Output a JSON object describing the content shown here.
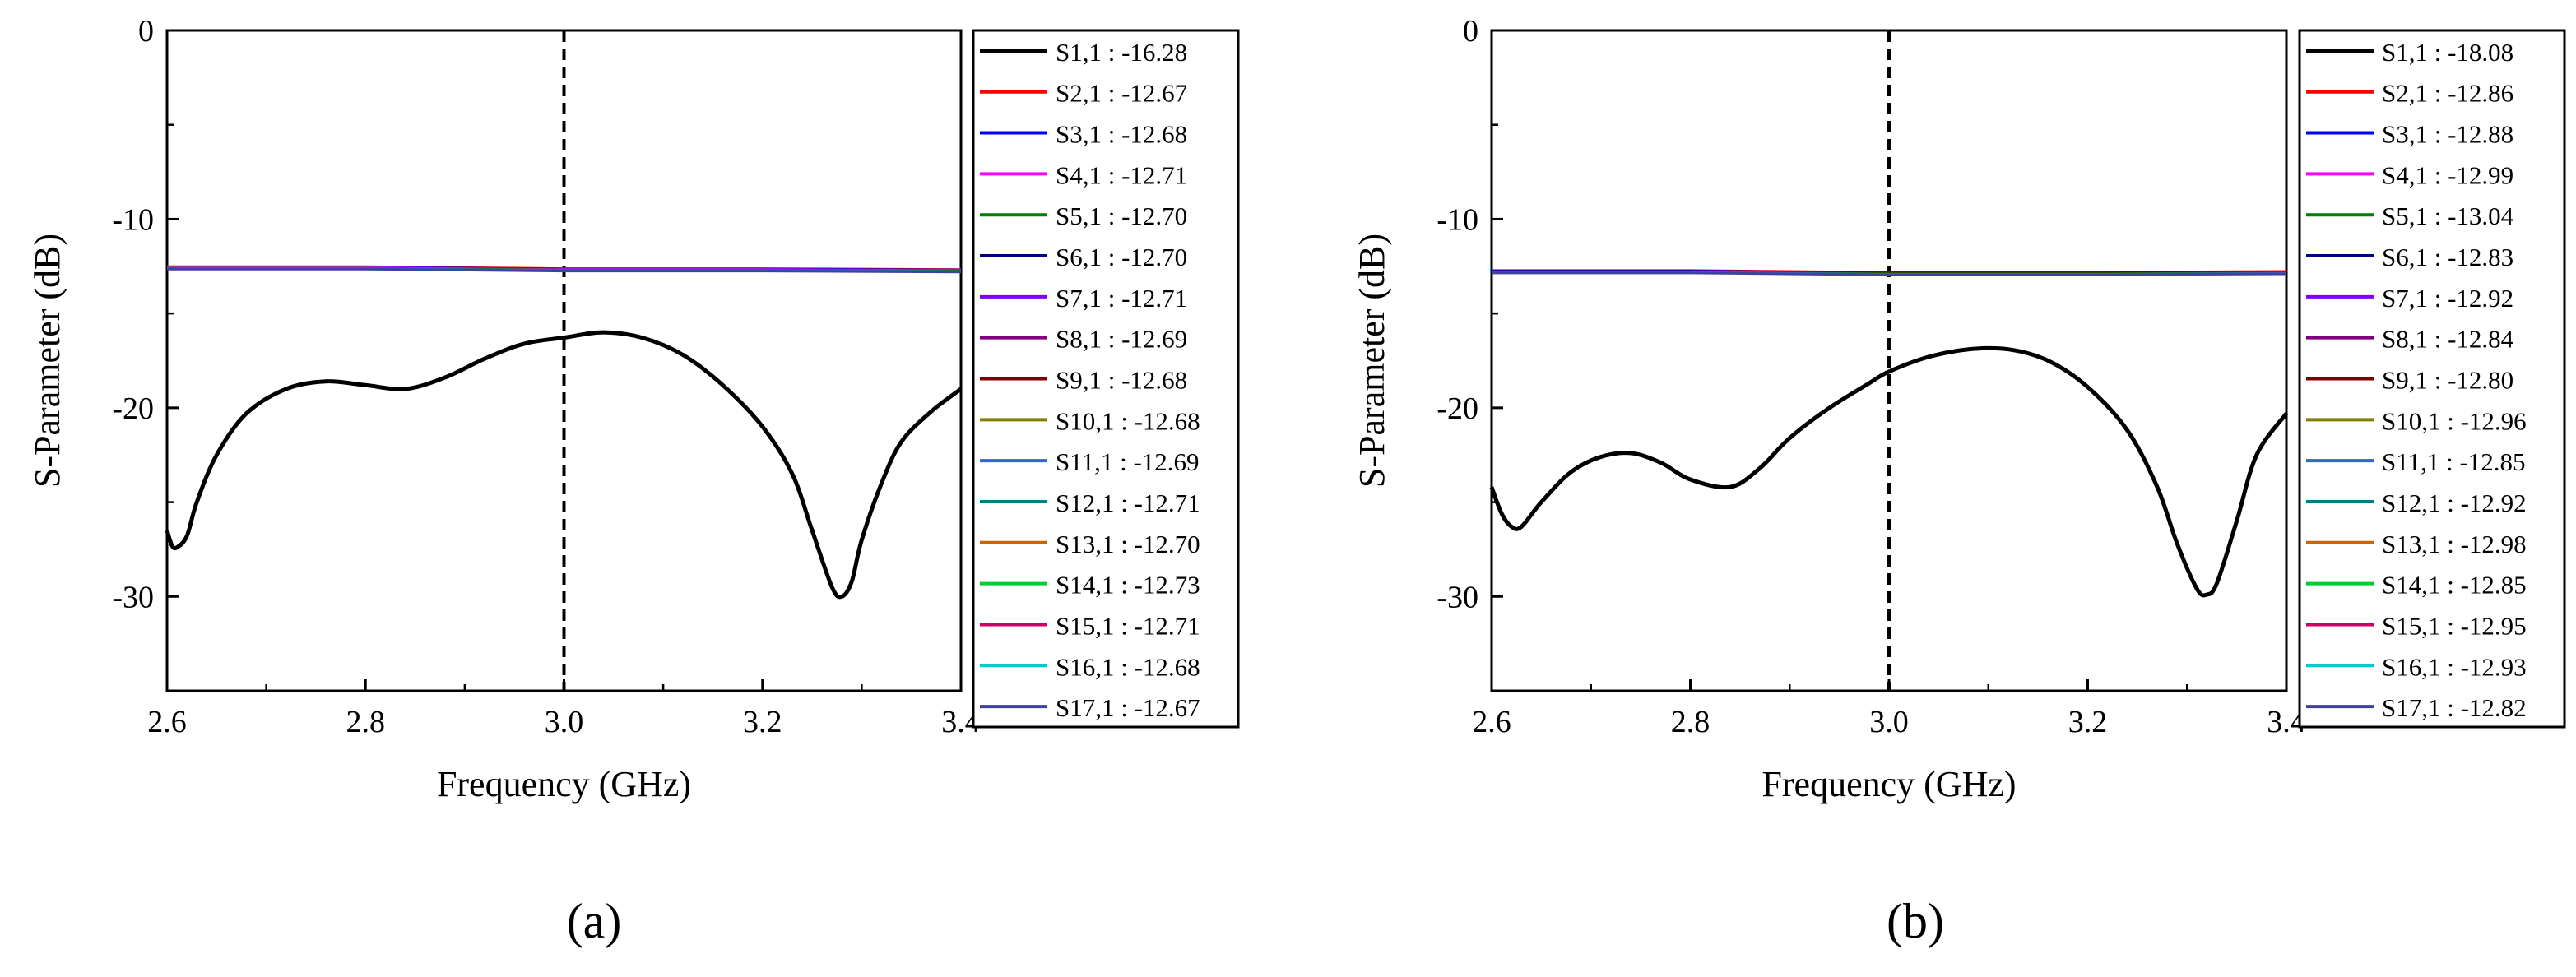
{
  "chart_data": [
    {
      "type": "line",
      "panel_label": "(a)",
      "xlabel": "Frequency (GHz)",
      "ylabel": "S-Parameter (dB)",
      "xlim": [
        2.6,
        3.4
      ],
      "ylim": [
        -35,
        0
      ],
      "xticks": [
        2.6,
        2.8,
        3.0,
        3.2,
        3.4
      ],
      "xtick_labels": [
        "2.6",
        "2.8",
        "3.0",
        "3.2",
        "3.4"
      ],
      "yticks": [
        0,
        -10,
        -20,
        -30
      ],
      "ytick_labels": [
        "0",
        "-10",
        "-20",
        "-30"
      ],
      "marker_line": {
        "x": 3.0,
        "style": "dashed"
      },
      "legend_position": "right",
      "legend": [
        {
          "label": "S1,1 : -16.28",
          "color": "#000000"
        },
        {
          "label": "S2,1 : -12.67",
          "color": "#ff0000"
        },
        {
          "label": "S3,1 : -12.68",
          "color": "#0000ff"
        },
        {
          "label": "S4,1 : -12.71",
          "color": "#ff00ff"
        },
        {
          "label": "S5,1 : -12.70",
          "color": "#008000"
        },
        {
          "label": "S6,1 : -12.70",
          "color": "#000080"
        },
        {
          "label": "S7,1 : -12.71",
          "color": "#8000ff"
        },
        {
          "label": "S8,1 : -12.69",
          "color": "#800080"
        },
        {
          "label": "S9,1 : -12.68",
          "color": "#800000"
        },
        {
          "label": "S10,1 : -12.68",
          "color": "#808000"
        },
        {
          "label": "S11,1 : -12.69",
          "color": "#3366cc"
        },
        {
          "label": "S12,1 : -12.71",
          "color": "#008080"
        },
        {
          "label": "S13,1 : -12.70",
          "color": "#cc6600"
        },
        {
          "label": "S14,1 : -12.73",
          "color": "#00cc33"
        },
        {
          "label": "S15,1 : -12.71",
          "color": "#cc0066"
        },
        {
          "label": "S16,1 : -12.68",
          "color": "#00cccc"
        },
        {
          "label": "S17,1 : -12.67",
          "color": "#4040a0"
        }
      ],
      "series": [
        {
          "name": "S1,1",
          "x": [
            2.6,
            2.605,
            2.61,
            2.62,
            2.63,
            2.65,
            2.68,
            2.72,
            2.76,
            2.8,
            2.84,
            2.88,
            2.92,
            2.96,
            3.0,
            3.04,
            3.08,
            3.12,
            3.16,
            3.2,
            3.23,
            3.25,
            3.27,
            3.28,
            3.29,
            3.3,
            3.32,
            3.34,
            3.37,
            3.4
          ],
          "y": [
            -26.5,
            -27.3,
            -27.4,
            -26.8,
            -25.0,
            -22.5,
            -20.3,
            -19.0,
            -18.6,
            -18.8,
            -19.0,
            -18.4,
            -17.4,
            -16.6,
            -16.28,
            -16.0,
            -16.3,
            -17.2,
            -18.8,
            -21.0,
            -23.5,
            -26.5,
            -29.5,
            -30.0,
            -29.2,
            -27.0,
            -24.0,
            -21.8,
            -20.2,
            -19.0
          ],
          "color": "#000000"
        },
        {
          "name": "S2,1 to S17,1 (overlapping)",
          "x": [
            2.6,
            2.8,
            3.0,
            3.2,
            3.4
          ],
          "y": [
            -12.6,
            -12.6,
            -12.7,
            -12.7,
            -12.75
          ],
          "colors": [
            "#ff0000",
            "#0000ff",
            "#ff00ff",
            "#008000",
            "#3366cc",
            "#4040a0"
          ]
        }
      ]
    },
    {
      "type": "line",
      "panel_label": "(b)",
      "xlabel": "Frequency (GHz)",
      "ylabel": "S-Parameter (dB)",
      "xlim": [
        2.6,
        3.4
      ],
      "ylim": [
        -35,
        0
      ],
      "xticks": [
        2.6,
        2.8,
        3.0,
        3.2,
        3.4
      ],
      "xtick_labels": [
        "2.6",
        "2.8",
        "3.0",
        "3.2",
        "3.4"
      ],
      "yticks": [
        0,
        -10,
        -20,
        -30
      ],
      "ytick_labels": [
        "0",
        "-10",
        "-20",
        "-30"
      ],
      "marker_line": {
        "x": 3.0,
        "style": "dashed"
      },
      "legend_position": "right",
      "legend": [
        {
          "label": "S1,1 : -18.08",
          "color": "#000000"
        },
        {
          "label": "S2,1 : -12.86",
          "color": "#ff0000"
        },
        {
          "label": "S3,1 : -12.88",
          "color": "#0000ff"
        },
        {
          "label": "S4,1 : -12.99",
          "color": "#ff00ff"
        },
        {
          "label": "S5,1 : -13.04",
          "color": "#008000"
        },
        {
          "label": "S6,1 : -12.83",
          "color": "#000080"
        },
        {
          "label": "S7,1 : -12.92",
          "color": "#8000ff"
        },
        {
          "label": "S8,1 : -12.84",
          "color": "#800080"
        },
        {
          "label": "S9,1 : -12.80",
          "color": "#800000"
        },
        {
          "label": "S10,1 : -12.96",
          "color": "#808000"
        },
        {
          "label": "S11,1 : -12.85",
          "color": "#3366cc"
        },
        {
          "label": "S12,1 : -12.92",
          "color": "#008080"
        },
        {
          "label": "S13,1 : -12.98",
          "color": "#cc6600"
        },
        {
          "label": "S14,1 : -12.85",
          "color": "#00cc33"
        },
        {
          "label": "S15,1 : -12.95",
          "color": "#cc0066"
        },
        {
          "label": "S16,1 : -12.93",
          "color": "#00cccc"
        },
        {
          "label": "S17,1 : -12.82",
          "color": "#4040a0"
        }
      ],
      "series": [
        {
          "name": "S1,1",
          "x": [
            2.6,
            2.61,
            2.62,
            2.63,
            2.65,
            2.68,
            2.71,
            2.74,
            2.77,
            2.8,
            2.84,
            2.87,
            2.9,
            2.94,
            2.98,
            3.0,
            3.04,
            3.08,
            3.12,
            3.16,
            3.2,
            3.24,
            3.27,
            3.29,
            3.31,
            3.32,
            3.33,
            3.35,
            3.37,
            3.4
          ],
          "y": [
            -24.2,
            -25.6,
            -26.3,
            -26.3,
            -25.0,
            -23.4,
            -22.6,
            -22.4,
            -22.9,
            -23.8,
            -24.2,
            -23.2,
            -21.6,
            -20.0,
            -18.7,
            -18.08,
            -17.3,
            -16.9,
            -16.9,
            -17.5,
            -18.9,
            -21.2,
            -24.2,
            -27.2,
            -29.6,
            -29.9,
            -29.3,
            -26.0,
            -22.5,
            -20.3
          ],
          "color": "#000000"
        },
        {
          "name": "S2,1 to S17,1 (overlapping)",
          "x": [
            2.6,
            2.8,
            3.0,
            3.2,
            3.4
          ],
          "y": [
            -12.8,
            -12.8,
            -12.9,
            -12.9,
            -12.85
          ],
          "colors": [
            "#ff0000",
            "#0000ff",
            "#800000",
            "#008000",
            "#3366cc",
            "#4040a0"
          ]
        }
      ]
    }
  ]
}
